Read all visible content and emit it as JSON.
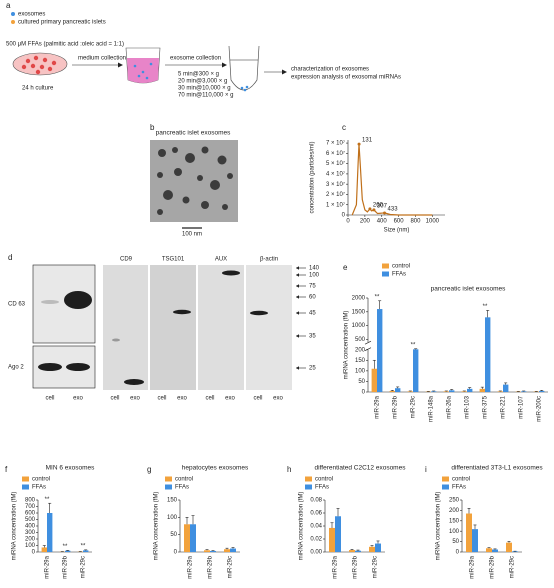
{
  "diagram": {
    "label": "a",
    "legend": [
      "exosomes",
      "cultured primary pancreatic islets"
    ],
    "treatment": "500 μM FFAs (palmitic acid :oleic acid = 1:1)",
    "culture": "24 h culture",
    "step1": "medium collection",
    "step2": "exosome collection",
    "centrifugation": [
      "5 min@300 × g",
      "20 min@3,000 × g",
      "30 min@10,000 × g",
      "70 min@110,000 × g"
    ],
    "outcomes": [
      "characterization of exosomes",
      "expression analysis of exosomal miRNAs"
    ]
  },
  "image": {
    "label": "b",
    "title": "pancreatic islet exosomes",
    "scale_bar": "100 nm"
  },
  "blots": {
    "label": "d",
    "left_rows": [
      "CD 63",
      "Ago 2"
    ],
    "lanes": [
      "cell",
      "exo"
    ],
    "panels": [
      "CD9",
      "TSG101",
      "AUX",
      "β-actin"
    ],
    "markers": [
      140,
      100,
      75,
      60,
      45,
      35,
      25
    ]
  },
  "chart_data": [
    {
      "type": "line",
      "label": "c",
      "xlabel": "Size (nm)",
      "ylabel": "concentration (particles/ml)",
      "color": "#c0701a",
      "x": [
        50,
        100,
        120,
        131,
        145,
        170,
        200,
        230,
        260,
        280,
        307,
        350,
        433,
        500,
        600,
        800,
        1000
      ],
      "values": [
        0,
        10000000,
        50000000,
        69000000,
        50000000,
        15000000,
        5000000,
        3000000,
        6000000,
        4000000,
        5000000,
        1500000,
        2000000,
        500000,
        0,
        0,
        0
      ],
      "peaks": [
        131,
        260,
        307,
        433
      ],
      "xlim": [
        0,
        1150
      ],
      "xticks": [
        0,
        200,
        400,
        600,
        800,
        1000
      ],
      "ylim": [
        0,
        73000000
      ],
      "yticks": [
        0,
        {
          "value": 10000000,
          "label": "1 × 10⁷"
        },
        {
          "value": 20000000,
          "label": "2 × 10⁷"
        },
        {
          "value": 30000000,
          "label": "3 × 10⁷"
        },
        {
          "value": 40000000,
          "label": "4 × 10⁷"
        },
        {
          "value": 50000000,
          "label": "5 × 10⁷"
        },
        {
          "value": 60000000,
          "label": "6 × 10⁷"
        },
        {
          "value": 70000000,
          "label": "7 × 10⁷"
        }
      ]
    },
    {
      "type": "bar",
      "label": "e",
      "title": "pancreatic islet exosomes",
      "ylabel": "miRNA concentration (fM)",
      "categories": [
        "miR-29a",
        "miR-29b",
        "miR-29c",
        "miR-148a",
        "miR-26a",
        "miR-103",
        "miR-375",
        "miR-221",
        "miR-107",
        "miR-200c"
      ],
      "series": [
        {
          "name": "control",
          "color": "#f2a23c",
          "values": [
            110,
            5,
            3,
            2,
            3,
            3,
            15,
            3,
            2,
            2
          ],
          "errors": [
            40,
            3,
            2,
            1,
            2,
            2,
            8,
            2,
            1,
            1
          ]
        },
        {
          "name": "FFAs",
          "color": "#3f8fe0",
          "values": [
            1600,
            18,
            210,
            3,
            8,
            15,
            1300,
            35,
            3,
            5
          ],
          "errors": [
            300,
            6,
            15,
            2,
            4,
            6,
            250,
            8,
            2,
            3
          ]
        }
      ],
      "significance": [
        "**",
        null,
        "**",
        null,
        null,
        null,
        "**",
        null,
        null,
        null
      ],
      "ylim": [
        0,
        2000
      ],
      "ybreak": [
        200,
        400
      ],
      "yticks": [
        0,
        50,
        100,
        150,
        200,
        500,
        1000,
        1500,
        2000
      ]
    },
    {
      "type": "bar",
      "label": "f",
      "title": "MIN 6 exosomes",
      "ylabel": "miRNA concentration (fM)",
      "categories": [
        "miR-29a",
        "miR-29b",
        "miR-29c"
      ],
      "series": [
        {
          "name": "control",
          "color": "#f2a23c",
          "values": [
            70,
            5,
            5
          ],
          "errors": [
            30,
            2,
            3
          ]
        },
        {
          "name": "FFAs",
          "color": "#3f8fe0",
          "values": [
            600,
            20,
            25
          ],
          "errors": [
            150,
            5,
            8
          ]
        }
      ],
      "significance": [
        "**",
        "**",
        "**"
      ],
      "ylim": [
        0,
        800
      ],
      "yticks": [
        0,
        100,
        200,
        300,
        400,
        500,
        600,
        700,
        800
      ]
    },
    {
      "type": "bar",
      "label": "g",
      "title": "hepatocytes exosomes",
      "ylabel": "miRNA concentration (fM)",
      "categories": [
        "miR-29a",
        "miR-29b",
        "miR-29c"
      ],
      "series": [
        {
          "name": "control",
          "color": "#f2a23c",
          "values": [
            80,
            5,
            8
          ],
          "errors": [
            20,
            2,
            3
          ]
        },
        {
          "name": "FFAs",
          "color": "#3f8fe0",
          "values": [
            80,
            3,
            10
          ],
          "errors": [
            25,
            1,
            3
          ]
        }
      ],
      "ylim": [
        0,
        150
      ],
      "yticks": [
        0,
        50,
        100,
        150
      ]
    },
    {
      "type": "bar",
      "label": "h",
      "title": "differentiated C2C12 exosomes",
      "ylabel": "miRNA concentration (fM)",
      "categories": [
        "miR-29a",
        "miR-29b",
        "miR-29c"
      ],
      "series": [
        {
          "name": "control",
          "color": "#f2a23c",
          "values": [
            0.037,
            0.003,
            0.008
          ],
          "errors": [
            0.008,
            0.001,
            0.002
          ]
        },
        {
          "name": "FFAs",
          "color": "#3f8fe0",
          "values": [
            0.055,
            0.002,
            0.013
          ],
          "errors": [
            0.012,
            0.001,
            0.004
          ]
        }
      ],
      "ylim": [
        0,
        0.08
      ],
      "yticks": [
        {
          "value": 0,
          "label": "0.00"
        },
        0.02,
        0.04,
        0.06,
        0.08
      ]
    },
    {
      "type": "bar",
      "label": "i",
      "title": "differentiated 3T3-L1 exosomes",
      "ylabel": "miRNA concentration (fM)",
      "categories": [
        "miR-29a",
        "miR-29b",
        "miR-29c"
      ],
      "series": [
        {
          "name": "control",
          "color": "#f2a23c",
          "values": [
            185,
            18,
            45
          ],
          "errors": [
            25,
            3,
            6
          ]
        },
        {
          "name": "FFAs",
          "color": "#3f8fe0",
          "values": [
            110,
            12,
            3
          ],
          "errors": [
            20,
            3,
            1
          ]
        }
      ],
      "ylim": [
        0,
        250
      ],
      "yticks": [
        0,
        50,
        100,
        150,
        200,
        250
      ]
    }
  ]
}
